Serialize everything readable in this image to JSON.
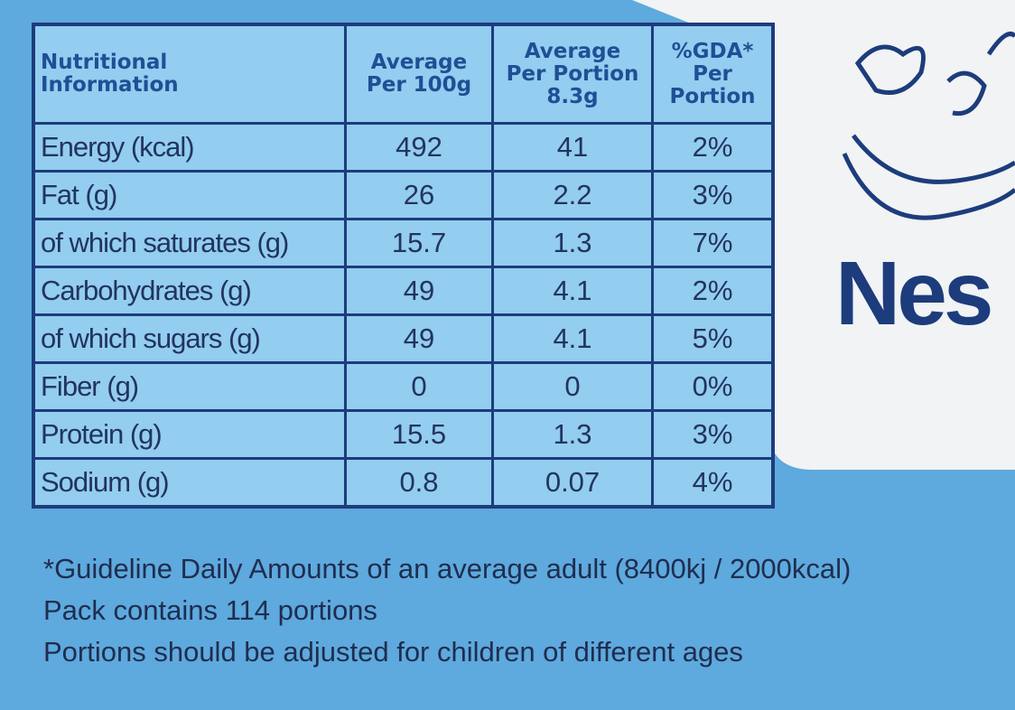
{
  "table": {
    "header": [
      "Nutritional\nInformation",
      "Average\nPer 100g",
      "Average\nPer Portion\n8.3g",
      "%GDA*\nPer\nPortion"
    ],
    "rows": [
      [
        "Energy (kcal)",
        "492",
        "41",
        "2%"
      ],
      [
        "Fat (g)",
        "26",
        "2.2",
        "3%"
      ],
      [
        "of which saturates (g)",
        "15.7",
        "1.3",
        "7%"
      ],
      [
        "Carbohydrates (g)",
        "49",
        "4.1",
        "2%"
      ],
      [
        "of which sugars (g)",
        "49",
        "4.1",
        "5%"
      ],
      [
        "Fiber (g)",
        "0",
        "0",
        "0%"
      ],
      [
        "Protein (g)",
        "15.5",
        "1.3",
        "3%"
      ],
      [
        "Sodium (g)",
        "0.8",
        "0.07",
        "4%"
      ]
    ]
  },
  "footnotes": [
    "*Guideline Daily Amounts of an average adult (8400kj / 2000kcal)",
    "Pack contains 114 portions",
    "Portions should be adjusted for children of different ages"
  ],
  "brand": "Nes"
}
